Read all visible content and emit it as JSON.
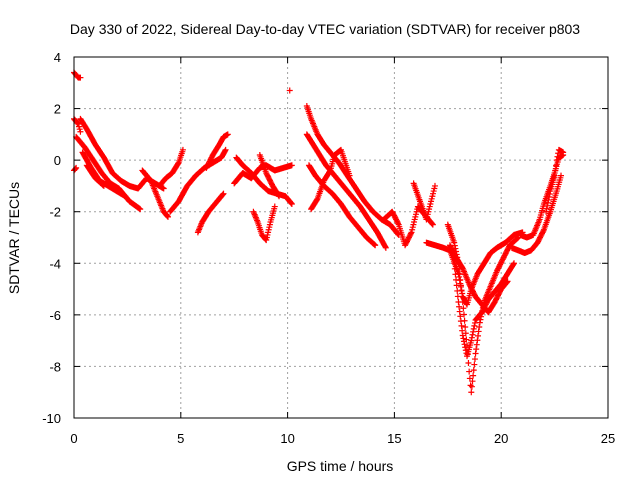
{
  "chart_data": {
    "type": "scatter",
    "title": "Day 330 of 2022, Sidereal Day-to-day VTEC variation (SDTVAR) for receiver p803",
    "xlabel": "GPS time / hours",
    "ylabel": "SDTVAR / TECUs",
    "xlim": [
      0,
      25
    ],
    "ylim": [
      -10,
      4
    ],
    "x_ticks": [
      0,
      5,
      10,
      15,
      20,
      25
    ],
    "y_ticks": [
      -10,
      -8,
      -6,
      -4,
      -2,
      0,
      2,
      4
    ],
    "x_tick_labels": [
      "0",
      "5",
      "10",
      "15",
      "20",
      "25"
    ],
    "y_tick_labels": [
      "-10",
      "-8",
      "-6",
      "-4",
      "-2",
      "0",
      "2",
      "4"
    ],
    "grid": true,
    "marker": "+",
    "series": [
      {
        "color": "#ff0000",
        "tracks": [
          [
            [
              0.0,
              3.4
            ],
            [
              0.1,
              3.3
            ],
            [
              0.2,
              3.2
            ],
            [
              0.3,
              3.2
            ]
          ],
          [
            [
              0.0,
              1.6
            ],
            [
              0.1,
              1.5
            ],
            [
              0.2,
              1.4
            ],
            [
              0.3,
              1.1
            ]
          ],
          [
            [
              0.0,
              -0.4
            ],
            [
              0.1,
              -0.3
            ]
          ],
          [
            [
              0.3,
              1.6
            ],
            [
              0.6,
              1.2
            ],
            [
              1.0,
              0.6
            ],
            [
              1.4,
              0.1
            ],
            [
              1.8,
              -0.5
            ],
            [
              2.2,
              -0.8
            ],
            [
              2.6,
              -1.0
            ],
            [
              3.0,
              -1.1
            ],
            [
              3.4,
              -0.7
            ],
            [
              3.8,
              -0.9
            ],
            [
              4.2,
              -1.1
            ]
          ],
          [
            [
              0.1,
              0.9
            ],
            [
              0.5,
              0.5
            ],
            [
              0.9,
              0.0
            ],
            [
              1.3,
              -0.5
            ],
            [
              1.7,
              -0.9
            ],
            [
              2.1,
              -1.1
            ],
            [
              2.6,
              -1.6
            ],
            [
              3.1,
              -1.9
            ]
          ],
          [
            [
              0.4,
              0.3
            ],
            [
              0.8,
              -0.3
            ],
            [
              1.2,
              -0.8
            ],
            [
              1.6,
              -1.0
            ],
            [
              2.0,
              -1.2
            ],
            [
              2.4,
              -1.4
            ]
          ],
          [
            [
              0.6,
              -0.2
            ],
            [
              1.0,
              -0.7
            ],
            [
              1.4,
              -1.0
            ]
          ],
          [
            [
              3.2,
              -0.4
            ],
            [
              3.6,
              -0.8
            ],
            [
              3.9,
              -1.4
            ],
            [
              4.2,
              -2.0
            ],
            [
              4.4,
              -2.2
            ]
          ],
          [
            [
              4.0,
              -1.0
            ],
            [
              4.3,
              -0.7
            ],
            [
              4.6,
              -0.5
            ],
            [
              4.9,
              -0.1
            ],
            [
              5.1,
              0.4
            ]
          ],
          [
            [
              4.5,
              -2.0
            ],
            [
              4.9,
              -1.6
            ],
            [
              5.3,
              -1.0
            ],
            [
              5.7,
              -0.6
            ],
            [
              6.1,
              -0.3
            ],
            [
              6.5,
              -0.1
            ],
            [
              6.9,
              0.1
            ],
            [
              7.1,
              0.4
            ]
          ],
          [
            [
              5.8,
              -2.8
            ],
            [
              6.0,
              -2.4
            ],
            [
              6.3,
              -2.0
            ],
            [
              6.7,
              -1.6
            ],
            [
              7.0,
              -1.3
            ]
          ],
          [
            [
              6.2,
              -0.3
            ],
            [
              6.5,
              0.2
            ],
            [
              6.8,
              0.6
            ],
            [
              7.0,
              0.9
            ],
            [
              7.2,
              1.0
            ]
          ],
          [
            [
              7.5,
              -0.9
            ],
            [
              7.9,
              -0.5
            ],
            [
              8.3,
              -0.7
            ],
            [
              8.7,
              -0.3
            ],
            [
              9.0,
              -0.2
            ],
            [
              9.4,
              -0.4
            ],
            [
              9.8,
              -0.3
            ],
            [
              10.2,
              -0.2
            ]
          ],
          [
            [
              7.6,
              0.1
            ],
            [
              7.9,
              -0.2
            ],
            [
              8.3,
              -0.5
            ],
            [
              8.7,
              -0.9
            ],
            [
              9.1,
              -1.2
            ],
            [
              9.5,
              -1.3
            ],
            [
              9.9,
              -1.4
            ],
            [
              10.2,
              -1.7
            ]
          ],
          [
            [
              8.4,
              -2.0
            ],
            [
              8.6,
              -2.4
            ],
            [
              8.8,
              -2.9
            ],
            [
              9.0,
              -3.1
            ],
            [
              9.2,
              -2.4
            ],
            [
              9.4,
              -1.8
            ]
          ],
          [
            [
              8.7,
              0.2
            ],
            [
              9.0,
              -0.5
            ],
            [
              9.3,
              -1.0
            ],
            [
              9.6,
              -1.4
            ]
          ],
          [
            [
              10.1,
              2.7
            ]
          ],
          [
            [
              10.9,
              2.1
            ],
            [
              11.1,
              1.6
            ],
            [
              11.4,
              1.0
            ],
            [
              11.7,
              0.6
            ],
            [
              12.0,
              0.3
            ],
            [
              12.4,
              -0.1
            ],
            [
              12.8,
              -0.6
            ],
            [
              13.2,
              -1.1
            ],
            [
              13.6,
              -1.6
            ],
            [
              14.0,
              -2.0
            ],
            [
              14.4,
              -2.3
            ],
            [
              14.8,
              -2.5
            ],
            [
              15.2,
              -2.9
            ]
          ],
          [
            [
              10.9,
              1.0
            ],
            [
              11.2,
              0.6
            ],
            [
              11.5,
              0.2
            ],
            [
              11.8,
              -0.2
            ],
            [
              12.2,
              -0.6
            ],
            [
              12.6,
              -1.0
            ],
            [
              13.0,
              -1.4
            ],
            [
              13.4,
              -1.8
            ],
            [
              13.8,
              -2.3
            ],
            [
              14.2,
              -2.8
            ],
            [
              14.6,
              -3.4
            ]
          ],
          [
            [
              11.0,
              -0.2
            ],
            [
              11.3,
              -0.6
            ],
            [
              11.7,
              -1.0
            ],
            [
              12.1,
              -1.3
            ],
            [
              12.5,
              -1.7
            ],
            [
              12.9,
              -2.2
            ],
            [
              13.3,
              -2.6
            ],
            [
              13.7,
              -3.0
            ],
            [
              14.1,
              -3.3
            ]
          ],
          [
            [
              11.1,
              -1.9
            ],
            [
              11.4,
              -1.5
            ],
            [
              11.7,
              -0.8
            ],
            [
              12.0,
              -0.4
            ],
            [
              12.2,
              0.2
            ],
            [
              12.5,
              0.4
            ],
            [
              12.9,
              -0.6
            ]
          ],
          [
            [
              14.5,
              -2.3
            ],
            [
              14.9,
              -2.0
            ],
            [
              15.2,
              -2.5
            ],
            [
              15.5,
              -3.3
            ],
            [
              15.8,
              -2.8
            ],
            [
              16.1,
              -1.8
            ],
            [
              16.4,
              -2.1
            ],
            [
              16.8,
              -2.5
            ]
          ],
          [
            [
              15.9,
              -0.9
            ],
            [
              16.2,
              -1.6
            ],
            [
              16.5,
              -2.3
            ],
            [
              16.9,
              -1.0
            ]
          ],
          [
            [
              16.5,
              -3.2
            ],
            [
              16.9,
              -3.3
            ],
            [
              17.3,
              -3.4
            ],
            [
              17.6,
              -3.5
            ],
            [
              18.0,
              -4.4
            ],
            [
              18.2,
              -5.3
            ],
            [
              18.4,
              -5.6
            ],
            [
              18.6,
              -5.0
            ],
            [
              18.9,
              -4.4
            ],
            [
              19.2,
              -4.0
            ],
            [
              19.5,
              -3.6
            ],
            [
              19.8,
              -3.4
            ],
            [
              20.2,
              -3.2
            ],
            [
              20.6,
              -2.9
            ],
            [
              21.0,
              -2.8
            ]
          ],
          [
            [
              17.5,
              -2.5
            ],
            [
              17.8,
              -3.2
            ],
            [
              18.0,
              -4.0
            ],
            [
              18.2,
              -5.5
            ],
            [
              18.4,
              -7.2
            ],
            [
              18.5,
              -8.2
            ],
            [
              18.6,
              -9.0
            ],
            [
              18.8,
              -7.5
            ],
            [
              19.0,
              -6.3
            ],
            [
              19.2,
              -5.5
            ],
            [
              19.5,
              -4.9
            ],
            [
              19.8,
              -4.3
            ],
            [
              20.1,
              -3.8
            ],
            [
              20.4,
              -3.3
            ],
            [
              20.8,
              -3.0
            ]
          ],
          [
            [
              17.8,
              -4.0
            ],
            [
              18.0,
              -5.5
            ],
            [
              18.2,
              -6.8
            ],
            [
              18.4,
              -7.6
            ],
            [
              18.6,
              -7.0
            ],
            [
              18.8,
              -6.2
            ],
            [
              19.1,
              -5.9
            ],
            [
              19.4,
              -5.4
            ],
            [
              19.7,
              -5.1
            ],
            [
              20.0,
              -4.8
            ],
            [
              20.3,
              -4.4
            ],
            [
              20.6,
              -4.0
            ]
          ],
          [
            [
              17.6,
              -3.3
            ],
            [
              17.9,
              -3.8
            ],
            [
              18.2,
              -4.2
            ],
            [
              18.5,
              -4.8
            ],
            [
              18.8,
              -5.3
            ],
            [
              19.1,
              -5.6
            ],
            [
              19.4,
              -5.9
            ],
            [
              19.7,
              -5.5
            ],
            [
              20.0,
              -5.0
            ],
            [
              20.3,
              -4.7
            ]
          ],
          [
            [
              20.5,
              -3.4
            ],
            [
              20.8,
              -3.5
            ],
            [
              21.1,
              -3.6
            ],
            [
              21.4,
              -3.5
            ],
            [
              21.7,
              -3.2
            ],
            [
              22.0,
              -2.7
            ],
            [
              22.3,
              -2.0
            ],
            [
              22.6,
              -1.2
            ],
            [
              22.8,
              -0.6
            ]
          ],
          [
            [
              20.9,
              -2.9
            ],
            [
              21.2,
              -3.0
            ],
            [
              21.5,
              -2.9
            ],
            [
              21.8,
              -2.3
            ],
            [
              22.0,
              -1.7
            ],
            [
              22.3,
              -1.0
            ],
            [
              22.5,
              -0.5
            ],
            [
              22.7,
              0.1
            ],
            [
              22.9,
              0.2
            ]
          ],
          [
            [
              22.1,
              -2.0
            ],
            [
              22.3,
              -1.2
            ],
            [
              22.5,
              -0.6
            ],
            [
              22.6,
              0.0
            ],
            [
              22.7,
              0.4
            ],
            [
              22.9,
              0.3
            ]
          ]
        ]
      }
    ]
  }
}
